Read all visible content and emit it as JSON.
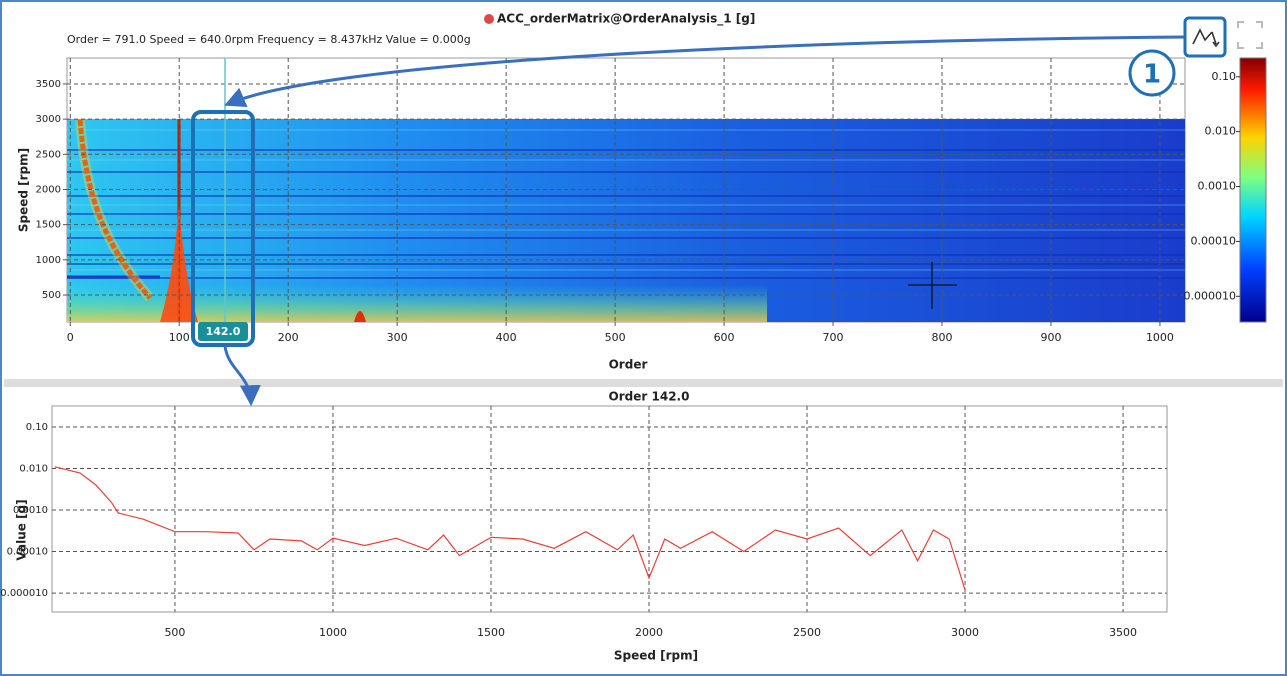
{
  "chart_data": [
    {
      "type": "heatmap",
      "title": "ACC_orderMatrix@OrderAnalysis_1 [g]",
      "readout": "Order = 791.0  Speed = 640.0rpm  Frequency = 8.437kHz  Value = 0.000g",
      "x_label": "Order",
      "y_label": "Speed [rpm]",
      "xlim": [
        -3,
        1023
      ],
      "ylim": [
        116,
        3869
      ],
      "xticks": [
        0,
        100,
        200,
        300,
        400,
        500,
        600,
        700,
        800,
        900,
        1000
      ],
      "yticks": [
        500,
        1000,
        1500,
        2000,
        2500,
        3000,
        3500
      ],
      "clim": [
        3.4e-06,
        0.22
      ],
      "log_color": true,
      "cticks": [
        {
          "value": 0.1,
          "label": "0.10"
        },
        {
          "value": 0.01,
          "label": "0.010"
        },
        {
          "value": 0.001,
          "label": "0.0010"
        },
        {
          "value": 0.0001,
          "label": "0.00010"
        },
        {
          "value": 1e-05,
          "label": "0.000010"
        }
      ],
      "cursor": {
        "value": 142,
        "label": "142.0"
      },
      "annotation": "1",
      "grid": true
    },
    {
      "type": "line",
      "title": "Order 142.0",
      "x_label": "Speed [rpm]",
      "y_label": "Value [g]",
      "xlim": [
        111,
        3639
      ],
      "ylim": [
        3.5e-06,
        0.32
      ],
      "log_y": true,
      "color": "#e8403a",
      "grid": true,
      "xticks": [
        500,
        1000,
        1500,
        2000,
        2500,
        3000,
        3500
      ],
      "yticks": [
        {
          "value": 0.1,
          "label": "0.10"
        },
        {
          "value": 0.01,
          "label": "0.010"
        },
        {
          "value": 0.001,
          "label": "0.0010"
        },
        {
          "value": 0.0001,
          "label": "0.00010"
        },
        {
          "value": 1e-05,
          "label": "0.000010"
        }
      ],
      "x": [
        120,
        200,
        250,
        300,
        320,
        400,
        500,
        600,
        700,
        750,
        800,
        900,
        950,
        1000,
        1100,
        1200,
        1300,
        1350,
        1400,
        1500,
        1600,
        1700,
        1800,
        1900,
        1950,
        2000,
        2050,
        2100,
        2200,
        2300,
        2400,
        2500,
        2600,
        2700,
        2800,
        2850,
        2900,
        2950,
        3000
      ],
      "values": [
        0.011,
        0.0078,
        0.004,
        0.0015,
        0.00085,
        0.0006,
        0.0003,
        0.0003,
        0.00028,
        0.00011,
        0.0002,
        0.00018,
        0.00011,
        0.00021,
        0.00014,
        0.00021,
        0.00011,
        0.00025,
        8e-05,
        0.00022,
        0.0002,
        0.00012,
        0.0003,
        0.00011,
        0.00025,
        2.3e-05,
        0.0002,
        0.00012,
        0.0003,
        0.0001,
        0.00033,
        0.0002,
        0.00037,
        8e-05,
        0.00033,
        6e-05,
        0.00033,
        0.0002,
        1.2e-05
      ]
    }
  ]
}
